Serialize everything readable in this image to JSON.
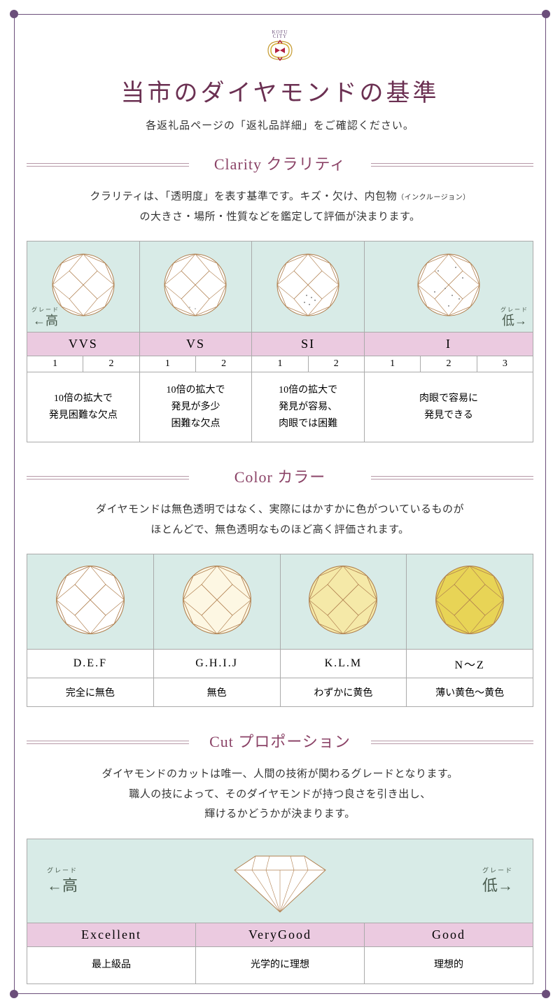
{
  "logo": {
    "line1": "KOFU",
    "line2": "CITY"
  },
  "title": "当市のダイヤモンドの基準",
  "subtitle": "各返礼品ページの「返礼品詳細」をご確認ください。",
  "clarity": {
    "heading": "Clarity クラリティ",
    "desc_line1": "クラリティは、「透明度」を表す基準です。キズ・欠け、内包物",
    "desc_small": "（インクルージョン）",
    "desc_line2": "の大きさ・場所・性質などを鑑定して評価が決まります。",
    "grades": [
      "VVS",
      "VS",
      "SI",
      "I"
    ],
    "subs": [
      [
        "1",
        "2"
      ],
      [
        "1",
        "2"
      ],
      [
        "1",
        "2"
      ],
      [
        "1",
        "2",
        "3"
      ]
    ],
    "descs": [
      "10倍の拡大で\n発見困難な欠点",
      "10倍の拡大で\n発見が多少\n困難な欠点",
      "10倍の拡大で\n発見が容易、\n肉眼では困難",
      "肉眼で容易に\n発見できる"
    ],
    "high": "高",
    "low": "低",
    "grade_label": "グレード",
    "diamond_fills": [
      "#ffffff",
      "#ffffff",
      "#ffffff",
      "#ffffff"
    ]
  },
  "color": {
    "heading": "Color カラー",
    "desc_line1": "ダイヤモンドは無色透明ではなく、実際にはかすかに色がついているものが",
    "desc_line2": "ほとんどで、無色透明なものほど高く評価されます。",
    "labels": [
      "D.E.F",
      "G.H.I.J",
      "K.L.M",
      "N～Z"
    ],
    "descs": [
      "完全に無色",
      "無色",
      "わずかに黄色",
      "薄い黄色～黄色"
    ],
    "diamond_fills": [
      "#ffffff",
      "#fdf7e3",
      "#f5e9a8",
      "#e8d456"
    ]
  },
  "cut": {
    "heading": "Cut プロポーション",
    "desc_line1": "ダイヤモンドのカットは唯一、人間の技術が関わるグレードとなります。",
    "desc_line2": "職人の技によって、そのダイヤモンドが持つ良さを引き出し、",
    "desc_line3": "輝けるかどうかが決まります。",
    "grades": [
      "Excellent",
      "VeryGood",
      "Good"
    ],
    "descs": [
      "最上級品",
      "光学的に理想",
      "理想的"
    ],
    "high": "高",
    "low": "低",
    "grade_label": "グレード"
  },
  "colors": {
    "frame": "#6b4e7a",
    "title": "#6b3052",
    "section": "#8b4367",
    "rule": "#b799a8",
    "mint": "#d8ebe7",
    "pink": "#ebcae0",
    "arrow": "#4a5c4f",
    "border": "#aaa"
  }
}
